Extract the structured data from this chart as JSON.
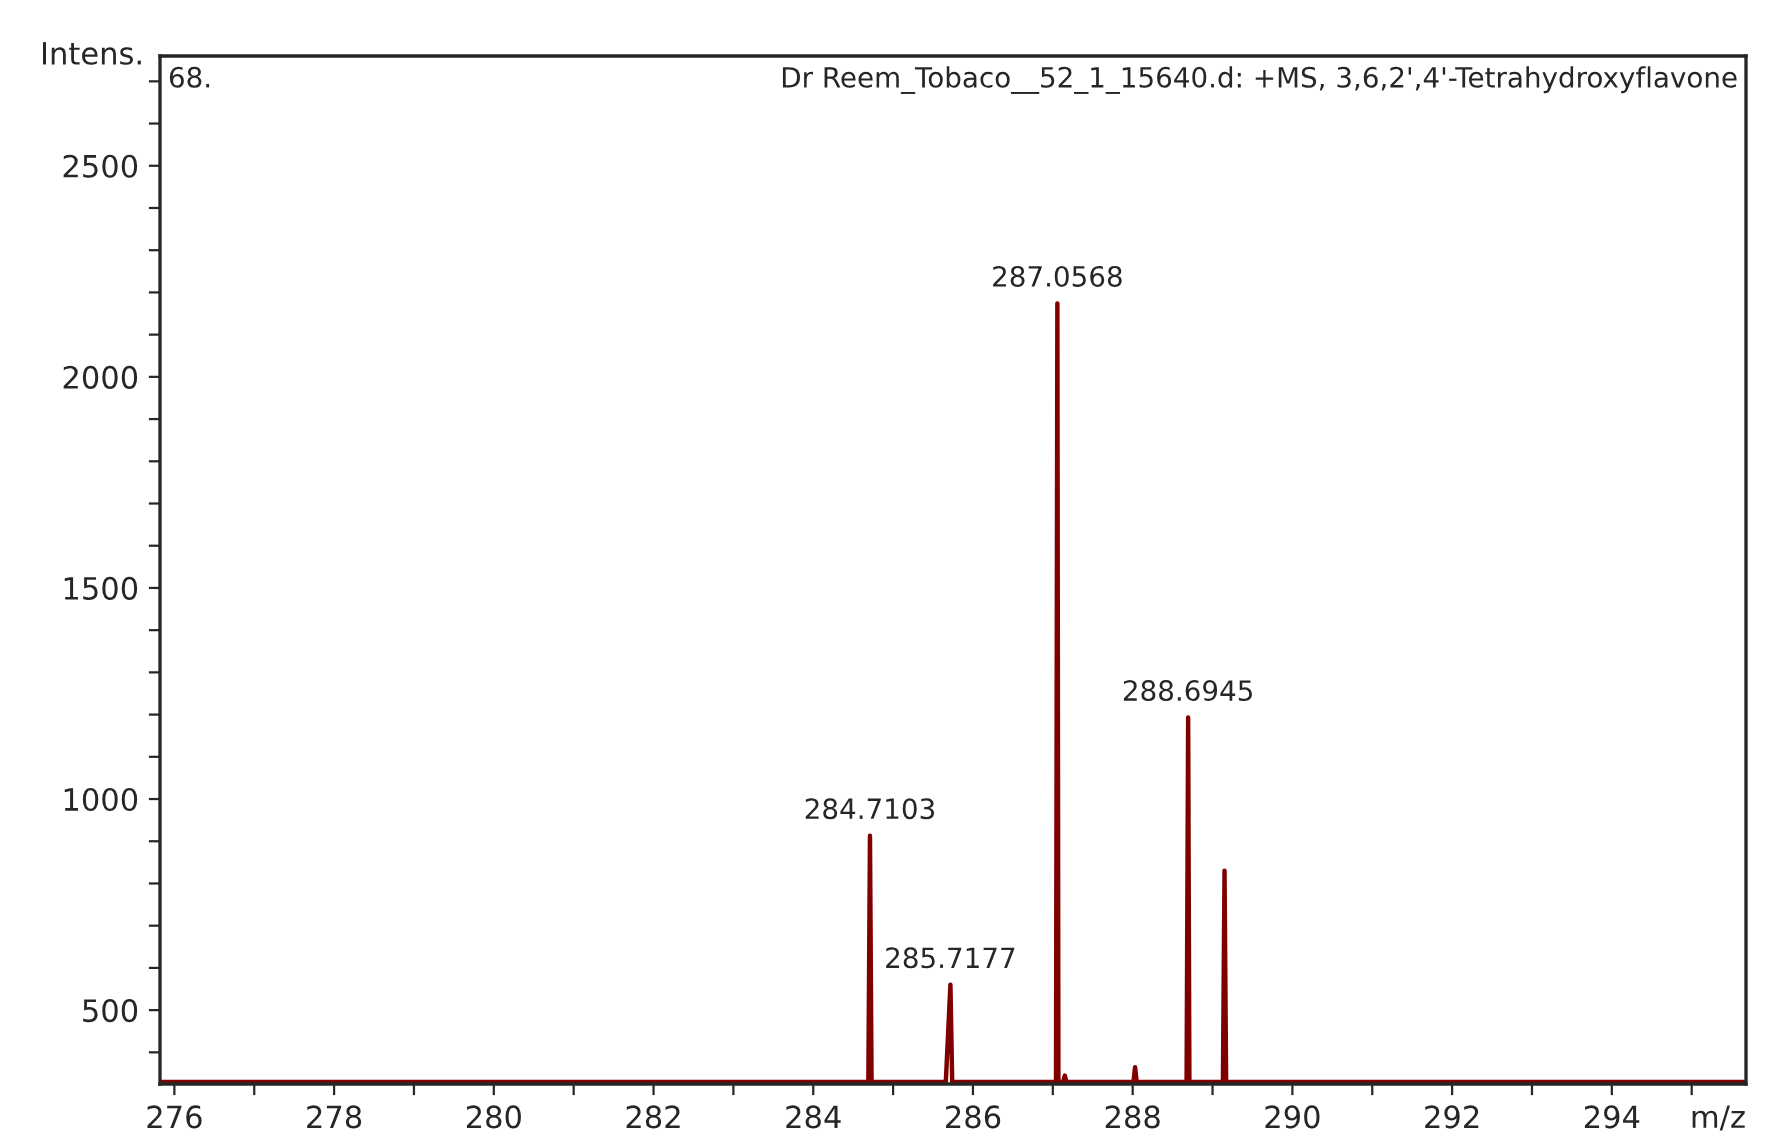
{
  "chart_data": {
    "type": "line",
    "title": "Dr Reem_Tobaco__52_1_15640.d: +MS, 3,6,2',4'-Tetrahydroxyflavone",
    "ylabel": "Intens.",
    "xlabel": "m/z",
    "series": [
      {
        "color": "#800000",
        "x": [
          275.82,
          284.69,
          284.7103,
          284.73,
          285.66,
          285.7177,
          285.74,
          287.04,
          287.0568,
          287.07,
          287.13,
          287.15,
          287.17,
          288.01,
          288.03,
          288.05,
          288.675,
          288.6945,
          288.71,
          289.13,
          289.15,
          289.17,
          295.68
        ],
        "values": [
          330,
          330,
          913,
          330,
          330,
          560,
          330,
          330,
          2174,
          330,
          330,
          345,
          330,
          330,
          365,
          330,
          330,
          1193,
          330,
          330,
          830,
          330,
          330
        ]
      }
    ],
    "annotations": [
      "68.",
      {
        "text": "284.7103",
        "x": 284.7103,
        "y": 913
      },
      {
        "text": "285.7177",
        "x": 285.7177,
        "y": 560
      },
      {
        "text": "287.0568",
        "x": 287.0568,
        "y": 2174
      },
      {
        "text": "288.6945",
        "x": 288.6945,
        "y": 1193
      }
    ],
    "xlim": [
      275.82,
      295.68
    ],
    "ylim": [
      325,
      2760
    ],
    "xticks": [
      276,
      {
        "value": 277,
        "label": null
      },
      278,
      {
        "value": 279,
        "label": null
      },
      280,
      {
        "value": 281,
        "label": null
      },
      282,
      {
        "value": 283,
        "label": null
      },
      284,
      {
        "value": 285,
        "label": null
      },
      286,
      {
        "value": 287,
        "label": null
      },
      288,
      {
        "value": 289,
        "label": null
      },
      290,
      {
        "value": 291,
        "label": null
      },
      292,
      {
        "value": 293,
        "label": null
      },
      294,
      {
        "value": 295,
        "label": null
      }
    ],
    "yticks": [
      {
        "value": 400,
        "label": null
      },
      500,
      {
        "value": 600,
        "label": null
      },
      {
        "value": 700,
        "label": null
      },
      {
        "value": 800,
        "label": null
      },
      {
        "value": 900,
        "label": null
      },
      1000,
      {
        "value": 1100,
        "label": null
      },
      {
        "value": 1200,
        "label": null
      },
      {
        "value": 1300,
        "label": null
      },
      {
        "value": 1400,
        "label": null
      },
      1500,
      {
        "value": 1600,
        "label": null
      },
      {
        "value": 1700,
        "label": null
      },
      {
        "value": 1800,
        "label": null
      },
      {
        "value": 1900,
        "label": null
      },
      2000,
      {
        "value": 2100,
        "label": null
      },
      {
        "value": 2200,
        "label": null
      },
      {
        "value": 2300,
        "label": null
      },
      {
        "value": 2400,
        "label": null
      },
      2500,
      {
        "value": 2600,
        "label": null
      },
      {
        "value": 2700,
        "label": null
      }
    ],
    "grid": false,
    "legend": false,
    "marker": "none",
    "line_style": "solid"
  }
}
